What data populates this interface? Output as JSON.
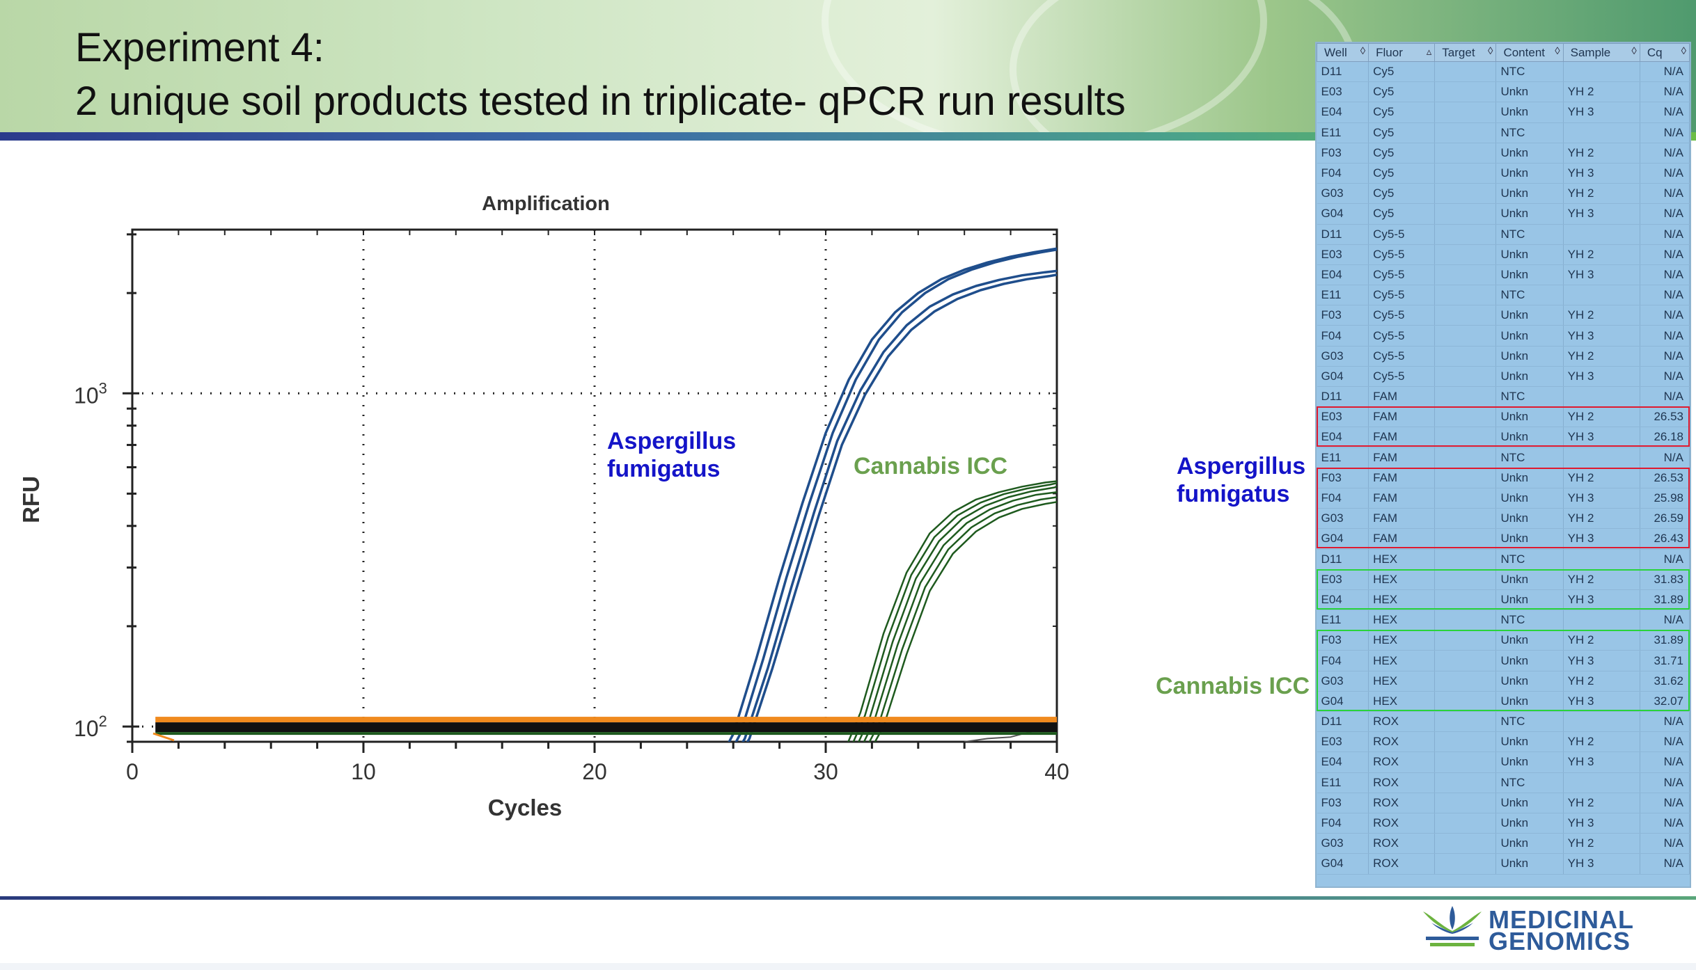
{
  "slide": {
    "title_line1": "Experiment 4:",
    "title_line2": "2 unique soil products tested in triplicate- qPCR run results"
  },
  "annotations": {
    "aspergillus_chart": [
      "Aspergillus",
      "fumigatus"
    ],
    "cannabis_chart": "Cannabis ICC",
    "aspergillus_table": [
      "Aspergillus",
      "fumigatus"
    ],
    "cannabis_table": "Cannabis ICC"
  },
  "logo": {
    "line1": "MEDICINAL",
    "line2": "GENOMICS"
  },
  "colors": {
    "aspergillus_text": "#1414c8",
    "cannabis_text": "#6aa04e",
    "aspergillus_curves": "#1f4e8c",
    "cannabis_curves": "#1e5a1e",
    "baseline_orange": "#f08a1e",
    "highlight_red": "#e0192f",
    "highlight_green": "#29d33b",
    "table_bg": "#99c5e6"
  },
  "chart_data": {
    "type": "line",
    "title": "Amplification",
    "xlabel": "Cycles",
    "ylabel": "RFU",
    "xlim": [
      0,
      40
    ],
    "ylim": [
      90,
      3100
    ],
    "yscale": "log",
    "xticks": [
      0,
      10,
      20,
      30,
      40
    ],
    "ytick_labels": [
      {
        "base": "10",
        "exp": "2",
        "value": 100
      },
      {
        "base": "10",
        "exp": "3",
        "value": 1000
      }
    ],
    "grid": "dotted",
    "series": [
      {
        "group": "aspergillus",
        "x": [
          25,
          26,
          27,
          28,
          29,
          30,
          31,
          32,
          33,
          34,
          35,
          36,
          37,
          38,
          39,
          40
        ],
        "y": [
          70,
          95,
          160,
          280,
          470,
          760,
          1100,
          1450,
          1750,
          2000,
          2200,
          2350,
          2470,
          2570,
          2650,
          2720
        ]
      },
      {
        "group": "aspergillus",
        "x": [
          25.3,
          26.3,
          27.3,
          28.3,
          29.3,
          30.3,
          31.3,
          32.3,
          33.3,
          34.3,
          35.3,
          36.3,
          37.3,
          38.3,
          39.3,
          40
        ],
        "y": [
          70,
          95,
          160,
          280,
          470,
          760,
          1100,
          1450,
          1750,
          2000,
          2200,
          2350,
          2470,
          2570,
          2650,
          2700
        ]
      },
      {
        "group": "aspergillus",
        "x": [
          25.5,
          26.5,
          27.5,
          28.5,
          29.5,
          30.5,
          31.5,
          32.5,
          33.5,
          34.5,
          35.5,
          36.5,
          37.5,
          38.5,
          39.5,
          40
        ],
        "y": [
          70,
          92,
          150,
          260,
          440,
          720,
          1020,
          1330,
          1600,
          1820,
          1980,
          2100,
          2190,
          2260,
          2310,
          2330
        ]
      },
      {
        "group": "aspergillus",
        "x": [
          25.7,
          26.7,
          27.7,
          28.7,
          29.7,
          30.7,
          31.7,
          32.7,
          33.7,
          34.7,
          35.7,
          36.7,
          37.7,
          38.7,
          39.7,
          40
        ],
        "y": [
          70,
          92,
          150,
          255,
          430,
          700,
          990,
          1290,
          1550,
          1760,
          1920,
          2040,
          2130,
          2200,
          2250,
          2270
        ]
      },
      {
        "group": "cannabis",
        "x": [
          30.5,
          31.5,
          32.5,
          33.5,
          34.5,
          35.5,
          36.5,
          37.5,
          38.5,
          39.5,
          40
        ],
        "y": [
          75,
          110,
          190,
          290,
          380,
          440,
          480,
          505,
          525,
          540,
          545
        ]
      },
      {
        "group": "cannabis",
        "x": [
          30.7,
          31.7,
          32.7,
          33.7,
          34.7,
          35.7,
          36.7,
          37.7,
          38.7,
          39.7,
          40
        ],
        "y": [
          75,
          108,
          185,
          285,
          370,
          430,
          470,
          498,
          518,
          532,
          538
        ]
      },
      {
        "group": "cannabis",
        "x": [
          30.9,
          31.9,
          32.9,
          33.9,
          34.9,
          35.9,
          36.9,
          37.9,
          38.9,
          39.9,
          40
        ],
        "y": [
          75,
          106,
          180,
          278,
          360,
          420,
          460,
          488,
          508,
          522,
          526
        ]
      },
      {
        "group": "cannabis",
        "x": [
          31.1,
          32.1,
          33.1,
          34.1,
          35.1,
          36.1,
          37.1,
          38.1,
          39.1,
          40
        ],
        "y": [
          75,
          104,
          175,
          270,
          350,
          408,
          448,
          476,
          496,
          505
        ]
      },
      {
        "group": "cannabis",
        "x": [
          31.3,
          32.3,
          33.3,
          34.3,
          35.3,
          36.3,
          37.3,
          38.3,
          39.3,
          40
        ],
        "y": [
          75,
          102,
          170,
          262,
          340,
          396,
          436,
          462,
          480,
          488
        ]
      },
      {
        "group": "cannabis",
        "x": [
          31.5,
          32.5,
          33.5,
          34.5,
          35.5,
          36.5,
          37.5,
          38.5,
          39.5,
          40
        ],
        "y": [
          75,
          100,
          165,
          255,
          330,
          385,
          424,
          450,
          466,
          472
        ]
      },
      {
        "group": "ntc",
        "x": [
          36,
          37,
          38,
          39,
          40
        ],
        "y": [
          90,
          92,
          93,
          97,
          101
        ]
      },
      {
        "group": "baseline",
        "x": [
          1,
          40
        ],
        "y": [
          100,
          100
        ]
      }
    ]
  },
  "table": {
    "columns": [
      "Well",
      "Fluor",
      "Target",
      "Content",
      "Sample",
      "Cq"
    ],
    "sort_icons": [
      "◊",
      "▵",
      "◊",
      "◊",
      "◊",
      "◊"
    ],
    "rows": [
      [
        "D11",
        "Cy5",
        "",
        "NTC",
        "",
        "N/A"
      ],
      [
        "E03",
        "Cy5",
        "",
        "Unkn",
        "YH 2",
        "N/A"
      ],
      [
        "E04",
        "Cy5",
        "",
        "Unkn",
        "YH 3",
        "N/A"
      ],
      [
        "E11",
        "Cy5",
        "",
        "NTC",
        "",
        "N/A"
      ],
      [
        "F03",
        "Cy5",
        "",
        "Unkn",
        "YH 2",
        "N/A"
      ],
      [
        "F04",
        "Cy5",
        "",
        "Unkn",
        "YH 3",
        "N/A"
      ],
      [
        "G03",
        "Cy5",
        "",
        "Unkn",
        "YH 2",
        "N/A"
      ],
      [
        "G04",
        "Cy5",
        "",
        "Unkn",
        "YH 3",
        "N/A"
      ],
      [
        "D11",
        "Cy5-5",
        "",
        "NTC",
        "",
        "N/A"
      ],
      [
        "E03",
        "Cy5-5",
        "",
        "Unkn",
        "YH 2",
        "N/A"
      ],
      [
        "E04",
        "Cy5-5",
        "",
        "Unkn",
        "YH 3",
        "N/A"
      ],
      [
        "E11",
        "Cy5-5",
        "",
        "NTC",
        "",
        "N/A"
      ],
      [
        "F03",
        "Cy5-5",
        "",
        "Unkn",
        "YH 2",
        "N/A"
      ],
      [
        "F04",
        "Cy5-5",
        "",
        "Unkn",
        "YH 3",
        "N/A"
      ],
      [
        "G03",
        "Cy5-5",
        "",
        "Unkn",
        "YH 2",
        "N/A"
      ],
      [
        "G04",
        "Cy5-5",
        "",
        "Unkn",
        "YH 3",
        "N/A"
      ],
      [
        "D11",
        "FAM",
        "",
        "NTC",
        "",
        "N/A"
      ],
      [
        "E03",
        "FAM",
        "",
        "Unkn",
        "YH 2",
        "26.53"
      ],
      [
        "E04",
        "FAM",
        "",
        "Unkn",
        "YH 3",
        "26.18"
      ],
      [
        "E11",
        "FAM",
        "",
        "NTC",
        "",
        "N/A"
      ],
      [
        "F03",
        "FAM",
        "",
        "Unkn",
        "YH 2",
        "26.53"
      ],
      [
        "F04",
        "FAM",
        "",
        "Unkn",
        "YH 3",
        "25.98"
      ],
      [
        "G03",
        "FAM",
        "",
        "Unkn",
        "YH 2",
        "26.59"
      ],
      [
        "G04",
        "FAM",
        "",
        "Unkn",
        "YH 3",
        "26.43"
      ],
      [
        "D11",
        "HEX",
        "",
        "NTC",
        "",
        "N/A"
      ],
      [
        "E03",
        "HEX",
        "",
        "Unkn",
        "YH 2",
        "31.83"
      ],
      [
        "E04",
        "HEX",
        "",
        "Unkn",
        "YH 3",
        "31.89"
      ],
      [
        "E11",
        "HEX",
        "",
        "NTC",
        "",
        "N/A"
      ],
      [
        "F03",
        "HEX",
        "",
        "Unkn",
        "YH 2",
        "31.89"
      ],
      [
        "F04",
        "HEX",
        "",
        "Unkn",
        "YH 3",
        "31.71"
      ],
      [
        "G03",
        "HEX",
        "",
        "Unkn",
        "YH 2",
        "31.62"
      ],
      [
        "G04",
        "HEX",
        "",
        "Unkn",
        "YH 3",
        "32.07"
      ],
      [
        "D11",
        "ROX",
        "",
        "NTC",
        "",
        "N/A"
      ],
      [
        "E03",
        "ROX",
        "",
        "Unkn",
        "YH 2",
        "N/A"
      ],
      [
        "E04",
        "ROX",
        "",
        "Unkn",
        "YH 3",
        "N/A"
      ],
      [
        "E11",
        "ROX",
        "",
        "NTC",
        "",
        "N/A"
      ],
      [
        "F03",
        "ROX",
        "",
        "Unkn",
        "YH 2",
        "N/A"
      ],
      [
        "F04",
        "ROX",
        "",
        "Unkn",
        "YH 3",
        "N/A"
      ],
      [
        "G03",
        "ROX",
        "",
        "Unkn",
        "YH 2",
        "N/A"
      ],
      [
        "G04",
        "ROX",
        "",
        "Unkn",
        "YH 3",
        "N/A"
      ]
    ],
    "highlight_groups": [
      {
        "color": "red",
        "rows": [
          17,
          18
        ]
      },
      {
        "color": "red",
        "rows": [
          20,
          21,
          22,
          23
        ]
      },
      {
        "color": "green",
        "rows": [
          25,
          26
        ]
      },
      {
        "color": "green",
        "rows": [
          28,
          29,
          30,
          31
        ]
      }
    ]
  }
}
